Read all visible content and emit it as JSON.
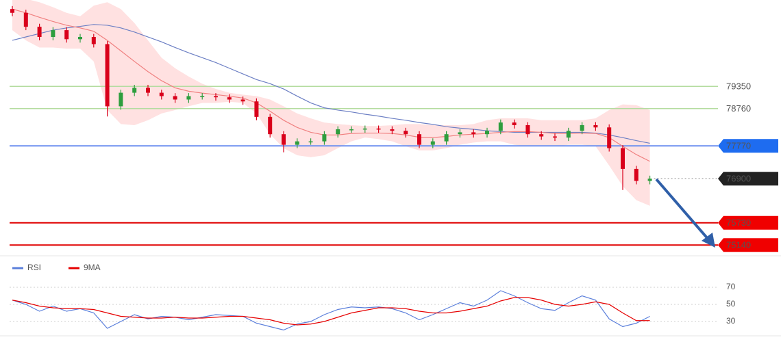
{
  "chart_data": [
    {
      "type": "candlestick",
      "up_color": "#2e9e3e",
      "down_color": "#d9001b",
      "open": [
        81400,
        81300,
        80930,
        80660,
        80840,
        80600,
        80660,
        80470,
        78820,
        79180,
        79310,
        79180,
        79090,
        79000,
        79090,
        79090,
        79060,
        79000,
        78950,
        78540,
        78080,
        77800,
        77890,
        77890,
        78080,
        78210,
        78210,
        78230,
        78210,
        78170,
        78080,
        77800,
        77890,
        78080,
        78130,
        78080,
        78170,
        78390,
        78320,
        78080,
        78020,
        77990,
        78170,
        78320,
        78260,
        77710,
        77160,
        76840
      ],
      "high": [
        81480,
        81380,
        81010,
        80920,
        80920,
        80740,
        80740,
        80550,
        79260,
        79390,
        79390,
        79260,
        79170,
        79170,
        79170,
        79170,
        79140,
        79080,
        79030,
        78620,
        78160,
        77970,
        77970,
        78160,
        78290,
        78290,
        78310,
        78310,
        78290,
        78250,
        78160,
        77970,
        78160,
        78210,
        78210,
        78250,
        78470,
        78470,
        78400,
        78160,
        78100,
        78250,
        78400,
        78400,
        78340,
        77790,
        77240,
        76980
      ],
      "low": [
        81210,
        80840,
        80570,
        80570,
        80510,
        80510,
        80380,
        78550,
        78730,
        79090,
        79090,
        79000,
        78910,
        78910,
        79000,
        78970,
        78910,
        78860,
        78450,
        77990,
        77600,
        77710,
        77800,
        77800,
        77990,
        78120,
        78120,
        78120,
        78080,
        77990,
        77710,
        77710,
        77800,
        77990,
        77990,
        77990,
        78080,
        78230,
        77990,
        77930,
        77900,
        77900,
        78080,
        78170,
        77620,
        76600,
        76750,
        76750
      ],
      "close": [
        81300,
        80930,
        80660,
        80840,
        80600,
        80660,
        80470,
        78820,
        79180,
        79310,
        79180,
        79090,
        79000,
        79090,
        79090,
        79060,
        79000,
        78950,
        78540,
        78080,
        77800,
        77890,
        77890,
        78080,
        78210,
        78210,
        78230,
        78210,
        78170,
        78080,
        77800,
        77890,
        78080,
        78130,
        78080,
        78170,
        78390,
        78320,
        78080,
        78020,
        77990,
        78170,
        78320,
        78260,
        77710,
        77160,
        76840,
        76900
      ],
      "ma_slow": {
        "color": "#6c7fc4",
        "values": [
          80570,
          80660,
          80750,
          80840,
          80900,
          80940,
          80990,
          80970,
          80900,
          80790,
          80660,
          80530,
          80380,
          80240,
          80110,
          79980,
          79830,
          79680,
          79530,
          79420,
          79280,
          79090,
          78910,
          78780,
          78720,
          78670,
          78610,
          78560,
          78500,
          78450,
          78390,
          78340,
          78280,
          78240,
          78210,
          78170,
          78150,
          78130,
          78130,
          78130,
          78130,
          78130,
          78130,
          78110,
          78060,
          77990,
          77910,
          77840
        ]
      },
      "ma_fast": {
        "color": "#f08080",
        "values": [
          81400,
          81300,
          81180,
          81070,
          80970,
          80900,
          80810,
          80570,
          80290,
          80010,
          79740,
          79500,
          79310,
          79220,
          79170,
          79130,
          79090,
          79040,
          78910,
          78690,
          78450,
          78260,
          78130,
          78060,
          78060,
          78100,
          78110,
          78110,
          78100,
          78060,
          78000,
          77990,
          78020,
          78060,
          78080,
          78100,
          78130,
          78150,
          78150,
          78130,
          78100,
          78100,
          78110,
          78100,
          77990,
          77760,
          77540,
          77360
        ]
      },
      "bollinger": {
        "color": "#ffb3b3",
        "upper": [
          81770,
          81670,
          81580,
          81450,
          81300,
          81210,
          81490,
          81580,
          81400,
          81030,
          80570,
          80110,
          79830,
          79610,
          79420,
          79280,
          79180,
          79130,
          79090,
          79000,
          78820,
          78630,
          78500,
          78390,
          78350,
          78320,
          78300,
          78300,
          78320,
          78350,
          78350,
          78320,
          78320,
          78320,
          78350,
          78450,
          78500,
          78500,
          78500,
          78450,
          78450,
          78450,
          78450,
          78500,
          78720,
          78870,
          78850,
          78720
        ],
        "lower": [
          80840,
          80570,
          80380,
          80380,
          80350,
          80350,
          80010,
          78720,
          78350,
          78320,
          78450,
          78630,
          78720,
          78820,
          78910,
          78910,
          78940,
          78910,
          78630,
          78080,
          77710,
          77520,
          77470,
          77520,
          77710,
          77890,
          77990,
          77950,
          77890,
          77760,
          77650,
          77650,
          77710,
          77800,
          77860,
          77890,
          77890,
          77800,
          77760,
          77760,
          77760,
          77800,
          77800,
          77760,
          77250,
          76700,
          76330,
          76180
        ]
      },
      "levels": [
        {
          "value": 79350,
          "color": "#b5dca0",
          "label_color": "#ffffff",
          "text_color": "#4d9a2a"
        },
        {
          "value": 78760,
          "color": "#b5dca0",
          "label_color": "#ffffff",
          "text_color": "#4d9a2a"
        },
        {
          "value": 77770,
          "color": "#6d8ff0",
          "label_color": "#1e6cf0",
          "text_color": "#ffffff"
        },
        {
          "value": 76900,
          "color": "#888888",
          "label_color": "#222222",
          "text_color": "#ffffff",
          "style": "dotted"
        },
        {
          "value": 75730,
          "color": "#e00000",
          "label_color": "#f00000",
          "text_color": "#ffffff"
        },
        {
          "value": 75140,
          "color": "#e00000",
          "label_color": "#f00000",
          "text_color": "#ffffff"
        }
      ],
      "ylim": [
        74890,
        81640
      ]
    },
    {
      "type": "line",
      "series": [
        {
          "name": "RSI",
          "color": "#5b7fdb",
          "values": [
            55,
            50,
            42,
            48,
            42,
            45,
            40,
            22,
            30,
            38,
            33,
            36,
            35,
            32,
            35,
            38,
            37,
            36,
            28,
            24,
            20,
            27,
            30,
            38,
            44,
            47,
            46,
            47,
            45,
            40,
            32,
            38,
            45,
            52,
            48,
            55,
            66,
            60,
            52,
            45,
            43,
            52,
            60,
            55,
            33,
            24,
            28,
            36
          ]
        },
        {
          "name": "9MA",
          "color": "#e60000",
          "values": [
            55,
            52,
            48,
            46,
            45,
            45,
            44,
            40,
            36,
            35,
            34,
            34,
            35,
            34,
            34,
            35,
            36,
            36,
            34,
            32,
            28,
            26,
            27,
            30,
            35,
            40,
            43,
            46,
            46,
            45,
            42,
            40,
            40,
            42,
            45,
            48,
            54,
            58,
            58,
            55,
            50,
            48,
            50,
            53,
            50,
            40,
            31,
            31
          ]
        }
      ],
      "ylim": [
        14,
        102
      ],
      "yticks": [
        30,
        50,
        70
      ],
      "grid": true
    }
  ]
}
